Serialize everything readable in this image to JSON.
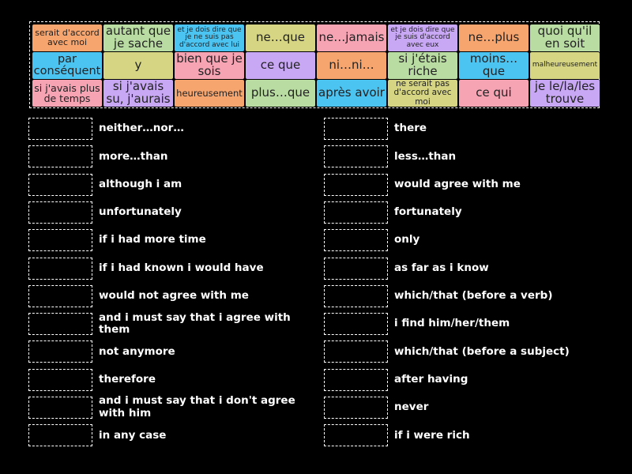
{
  "tiles": [
    {
      "text": "serait d'accord avec moi",
      "color": "#f7a56e"
    },
    {
      "text": "autant que je sache",
      "color": "#b9dca2"
    },
    {
      "text": "et je dois dire que je ne suis pas d'accord avec lui",
      "color": "#4cc4f2"
    },
    {
      "text": "ne…que",
      "color": "#d5d583"
    },
    {
      "text": "ne…jamais",
      "color": "#f6a3b4"
    },
    {
      "text": "et je dois dire que je suis d'accord avec eux",
      "color": "#c8a8f4"
    },
    {
      "text": "ne…plus",
      "color": "#f7a56e"
    },
    {
      "text": "quoi qu'il en soit",
      "color": "#b9dca2"
    },
    {
      "text": "par conséquent",
      "color": "#4cc4f2"
    },
    {
      "text": "y",
      "color": "#d5d583"
    },
    {
      "text": "bien que je sois",
      "color": "#f6a3b4"
    },
    {
      "text": "ce que",
      "color": "#c8a8f4"
    },
    {
      "text": "ni…ni…",
      "color": "#f7a56e"
    },
    {
      "text": "si j'étais riche",
      "color": "#b9dca2"
    },
    {
      "text": "moins…que",
      "color": "#4cc4f2"
    },
    {
      "text": "malheureusement",
      "color": "#d5d583"
    },
    {
      "text": "si j'avais plus de temps",
      "color": "#f6a3b4"
    },
    {
      "text": "si j'avais su, j'aurais",
      "color": "#c8a8f4"
    },
    {
      "text": "heureusement",
      "color": "#f7a56e"
    },
    {
      "text": "plus…que",
      "color": "#b9dca2"
    },
    {
      "text": "après avoir",
      "color": "#4cc4f2"
    },
    {
      "text": "ne serait pas d'accord avec moi",
      "color": "#d5d583"
    },
    {
      "text": "ce qui",
      "color": "#f6a3b4"
    },
    {
      "text": "je le/la/les trouve",
      "color": "#c8a8f4"
    }
  ],
  "items": {
    "left": [
      "neither…nor…",
      "more…than",
      "although i am",
      "unfortunately",
      "if i had more time",
      "if i had known i would have",
      "would not agree with me",
      "and i must say that i agree with them",
      "not anymore",
      "therefore",
      "and i must say that i don't agree with him",
      "in any case"
    ],
    "right": [
      "there",
      "less…than",
      "would agree with me",
      "fortunately",
      "only",
      "as far as i know",
      "which/that (before a verb)",
      "i find him/her/them",
      "which/that (before a subject)",
      "after having",
      "never",
      "if i were rich"
    ]
  }
}
